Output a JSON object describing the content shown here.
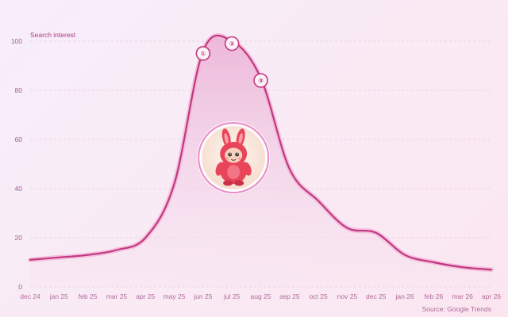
{
  "chart_data": {
    "type": "area",
    "title": "",
    "ylabel": "Search interest",
    "xlabel": "",
    "ylim": [
      0,
      100
    ],
    "yticks": [
      0,
      20,
      40,
      60,
      80,
      100
    ],
    "x_tick_labels": [
      "dec 24",
      "jan 25",
      "feb 25",
      "mar 25",
      "apr 25",
      "may 25",
      "jun 25",
      "jul 25",
      "aug 25",
      "sep 25",
      "oct 25",
      "nov 25",
      "dec 25",
      "jan 26",
      "feb 26",
      "mar 26",
      "apr 26"
    ],
    "grid": true,
    "series": [
      {
        "values": [
          11,
          12,
          13,
          15,
          20,
          42,
          96,
          100,
          85,
          48,
          35,
          24,
          22,
          13,
          10,
          8,
          7
        ]
      }
    ],
    "annotations": [
      {
        "label": "①",
        "x": "jun 25",
        "y": 96
      },
      {
        "label": "②",
        "x": "jul 25",
        "y": 100
      },
      {
        "label": "③",
        "x": "aug 25",
        "y": 85
      }
    ],
    "image_badge": {
      "icon": "plush-toy-icon",
      "x": "jul 25",
      "y": 50
    },
    "source": "Source: Google Trends",
    "colors": {
      "line": "#c2387f",
      "line_glow": "#f3b5d8",
      "area_top": "#e9a6cf",
      "area_bottom": "#f6e3f0",
      "badge_ring": "#e98ac6",
      "toy_body": "#e9455a",
      "toy_face": "#f6d2bd"
    }
  }
}
